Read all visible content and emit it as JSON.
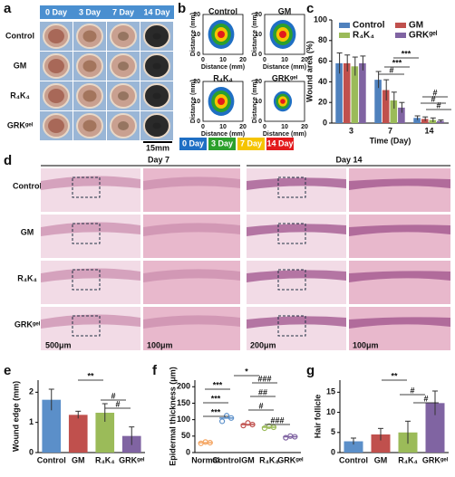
{
  "panel_labels": [
    "a",
    "b",
    "c",
    "d",
    "e",
    "f",
    "g"
  ],
  "wound_photos": {
    "days": [
      "0 Day",
      "3 Day",
      "7 Day",
      "14 Day"
    ],
    "groups": [
      "Control",
      "GM",
      "R₄K₄",
      "GRKᵍᵉˡ"
    ],
    "scale": "15mm"
  },
  "contours": {
    "titles": [
      "Control",
      "GM",
      "R₄K₄",
      "GRKᵍᵉˡ"
    ],
    "axis_label": "Distance (mm)",
    "ticks": [
      "0",
      "10",
      "20"
    ],
    "legend": [
      "0 Day",
      "3 Day",
      "7 Day",
      "14 Day"
    ],
    "legend_colors": [
      "#1f6fc4",
      "#2ca02c",
      "#f5c400",
      "#e31a1c"
    ]
  },
  "histology": {
    "days": [
      "Day 7",
      "Day 14"
    ],
    "groups": [
      "Control",
      "GM",
      "R₄K₄",
      "GRKᵍᵉˡ"
    ],
    "scales": [
      "500μm",
      "100μm",
      "200μm",
      "100μm"
    ]
  },
  "chart_data": [
    {
      "type": "bar",
      "ylabel": "Wound area (%)",
      "xlabel": "Time (Day)",
      "categories": [
        "3",
        "7",
        "14"
      ],
      "series": [
        {
          "name": "Control",
          "color": "#4f81bd",
          "values": [
            58,
            42,
            5
          ],
          "errors": [
            10,
            8,
            2
          ]
        },
        {
          "name": "GM",
          "color": "#c0504d",
          "values": [
            58,
            32,
            4
          ],
          "errors": [
            8,
            10,
            2
          ]
        },
        {
          "name": "R₄K₄",
          "color": "#9bbb59",
          "values": [
            55,
            22,
            3
          ],
          "errors": [
            9,
            8,
            2
          ]
        },
        {
          "name": "GRKᵍᵉˡ",
          "color": "#8064a2",
          "values": [
            58,
            15,
            2
          ],
          "errors": [
            7,
            5,
            1
          ]
        }
      ],
      "ylim": [
        0,
        100
      ],
      "yticks": [
        0,
        20,
        40,
        60,
        80,
        100
      ],
      "annotations": [
        "***",
        "***",
        "#",
        "#",
        "#",
        "#"
      ]
    },
    {
      "type": "bar",
      "ylabel": "Wound edge (mm)",
      "categories": [
        "Control",
        "GM",
        "R₄K₄",
        "GRKᵍᵉˡ"
      ],
      "values": [
        1.75,
        1.25,
        1.32,
        0.55
      ],
      "errors": [
        0.35,
        0.12,
        0.3,
        0.3
      ],
      "colors": [
        "#5b8fc9",
        "#c0504d",
        "#9bbb59",
        "#8064a2"
      ],
      "ylim": [
        0,
        2.4
      ],
      "yticks": [
        0,
        1,
        2
      ],
      "annotations": [
        "**",
        "#",
        "#"
      ]
    },
    {
      "type": "dot",
      "ylabel": "Epidermal thickness (μm)",
      "categories": [
        "Normal",
        "Control",
        "GM",
        "R₄K₄",
        "GRKᵍᵉˡ"
      ],
      "values": [
        30,
        105,
        85,
        77,
        48
      ],
      "points": [
        [
          28,
          32,
          30
        ],
        [
          95,
          112,
          105
        ],
        [
          82,
          90,
          85
        ],
        [
          74,
          80,
          77
        ],
        [
          45,
          50,
          48
        ]
      ],
      "colors": [
        "#f4a460",
        "#5b8fc9",
        "#c0504d",
        "#9bbb59",
        "#8064a2"
      ],
      "ylim": [
        0,
        220
      ],
      "yticks": [
        0,
        50,
        100,
        150,
        200
      ],
      "annotations": [
        "*",
        "###",
        "***",
        "##",
        "***",
        "#",
        "***",
        "###"
      ]
    },
    {
      "type": "bar",
      "ylabel": "Hair follicle",
      "categories": [
        "Control",
        "GM",
        "R₄K₄",
        "GRKᵍᵉˡ"
      ],
      "values": [
        2.8,
        4.5,
        5,
        12.3
      ],
      "errors": [
        0.8,
        1.5,
        2.8,
        3
      ],
      "colors": [
        "#5b8fc9",
        "#c0504d",
        "#9bbb59",
        "#8064a2"
      ],
      "ylim": [
        0,
        18
      ],
      "yticks": [
        0,
        5,
        10,
        15
      ],
      "annotations": [
        "**",
        "#",
        "#"
      ]
    }
  ]
}
